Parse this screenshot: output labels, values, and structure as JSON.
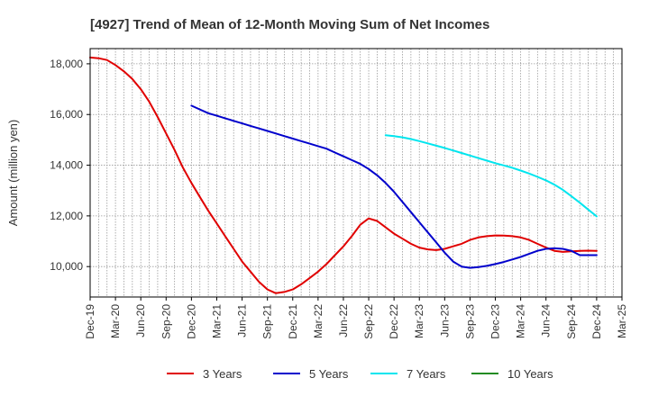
{
  "chart_data": {
    "type": "line",
    "title": "[4927]  Trend of Mean of 12-Month Moving Sum of Net Incomes",
    "xlabel": "",
    "ylabel": "Amount (million yen)",
    "ylim": [
      8800,
      18600
    ],
    "yticks": [
      10000,
      12000,
      14000,
      16000,
      18000
    ],
    "ytick_labels": [
      "10,000",
      "12,000",
      "14,000",
      "16,000",
      "18,000"
    ],
    "x_tick_labels": [
      "Dec-19",
      "Mar-20",
      "Jun-20",
      "Sep-20",
      "Dec-20",
      "Mar-21",
      "Jun-21",
      "Sep-21",
      "Dec-21",
      "Mar-22",
      "Jun-22",
      "Sep-22",
      "Dec-22",
      "Mar-23",
      "Jun-23",
      "Sep-23",
      "Dec-23",
      "Mar-24",
      "Jun-24",
      "Sep-24",
      "Dec-24",
      "Mar-25"
    ],
    "grid": true,
    "legend_position": "bottom",
    "series": [
      {
        "name": "3 Years",
        "color": "#e00000",
        "x": [
          "Dec-19",
          "Jan-20",
          "Feb-20",
          "Mar-20",
          "Apr-20",
          "May-20",
          "Jun-20",
          "Jul-20",
          "Aug-20",
          "Sep-20",
          "Oct-20",
          "Nov-20",
          "Dec-20",
          "Jan-21",
          "Feb-21",
          "Mar-21",
          "Apr-21",
          "May-21",
          "Jun-21",
          "Jul-21",
          "Aug-21",
          "Sep-21",
          "Oct-21",
          "Nov-21",
          "Dec-21",
          "Jan-22",
          "Feb-22",
          "Mar-22",
          "Apr-22",
          "May-22",
          "Jun-22",
          "Jul-22",
          "Aug-22",
          "Sep-22",
          "Oct-22",
          "Nov-22",
          "Dec-22",
          "Jan-23",
          "Feb-23",
          "Mar-23",
          "Apr-23",
          "May-23",
          "Jun-23",
          "Jul-23",
          "Aug-23",
          "Sep-23",
          "Oct-23",
          "Nov-23",
          "Dec-23",
          "Jan-24",
          "Feb-24",
          "Mar-24",
          "Apr-24",
          "May-24",
          "Jun-24",
          "Jul-24",
          "Aug-24",
          "Sep-24",
          "Oct-24",
          "Nov-24",
          "Dec-24"
        ],
        "values": [
          18250,
          18220,
          18150,
          17950,
          17700,
          17400,
          17000,
          16500,
          15900,
          15250,
          14600,
          13900,
          13300,
          12750,
          12200,
          11700,
          11200,
          10700,
          10200,
          9800,
          9400,
          9100,
          8950,
          9000,
          9100,
          9300,
          9550,
          9800,
          10100,
          10450,
          10800,
          11200,
          11650,
          11900,
          11800,
          11550,
          11300,
          11100,
          10900,
          10750,
          10680,
          10650,
          10700,
          10800,
          10900,
          11050,
          11150,
          11200,
          11230,
          11220,
          11200,
          11150,
          11050,
          10900,
          10750,
          10620,
          10580,
          10600,
          10620,
          10630,
          10620
        ]
      },
      {
        "name": "5 Years",
        "color": "#0000cc",
        "x": [
          "Dec-20",
          "Jan-21",
          "Feb-21",
          "Mar-21",
          "Apr-21",
          "May-21",
          "Jun-21",
          "Jul-21",
          "Aug-21",
          "Sep-21",
          "Oct-21",
          "Nov-21",
          "Dec-21",
          "Jan-22",
          "Feb-22",
          "Mar-22",
          "Apr-22",
          "May-22",
          "Jun-22",
          "Jul-22",
          "Aug-22",
          "Sep-22",
          "Oct-22",
          "Nov-22",
          "Dec-22",
          "Jan-23",
          "Feb-23",
          "Mar-23",
          "Apr-23",
          "May-23",
          "Jun-23",
          "Jul-23",
          "Aug-23",
          "Sep-23",
          "Oct-23",
          "Nov-23",
          "Dec-23",
          "Jan-24",
          "Feb-24",
          "Mar-24",
          "Apr-24",
          "May-24",
          "Jun-24",
          "Jul-24",
          "Aug-24",
          "Sep-24",
          "Oct-24",
          "Nov-24",
          "Dec-24"
        ],
        "values": [
          16350,
          16200,
          16050,
          15950,
          15850,
          15750,
          15650,
          15550,
          15450,
          15350,
          15250,
          15150,
          15050,
          14950,
          14850,
          14750,
          14650,
          14500,
          14350,
          14200,
          14050,
          13850,
          13600,
          13300,
          12950,
          12550,
          12150,
          11750,
          11350,
          10950,
          10550,
          10200,
          10000,
          9950,
          9980,
          10030,
          10100,
          10180,
          10280,
          10380,
          10500,
          10620,
          10700,
          10720,
          10700,
          10620,
          10450,
          10450,
          10450
        ]
      },
      {
        "name": "7 Years",
        "color": "#00e5ee",
        "x": [
          "Nov-22",
          "Dec-22",
          "Jan-23",
          "Feb-23",
          "Mar-23",
          "Apr-23",
          "May-23",
          "Jun-23",
          "Jul-23",
          "Aug-23",
          "Sep-23",
          "Oct-23",
          "Nov-23",
          "Dec-23",
          "Jan-24",
          "Feb-24",
          "Mar-24",
          "Apr-24",
          "May-24",
          "Jun-24",
          "Jul-24",
          "Aug-24",
          "Sep-24",
          "Oct-24",
          "Nov-24",
          "Dec-24"
        ],
        "values": [
          15180,
          15150,
          15100,
          15030,
          14950,
          14860,
          14770,
          14680,
          14580,
          14480,
          14380,
          14280,
          14180,
          14080,
          13990,
          13900,
          13790,
          13670,
          13540,
          13400,
          13230,
          13030,
          12780,
          12520,
          12250,
          11980
        ]
      },
      {
        "name": "10 Years",
        "color": "#228b22",
        "x": [],
        "values": []
      }
    ]
  }
}
